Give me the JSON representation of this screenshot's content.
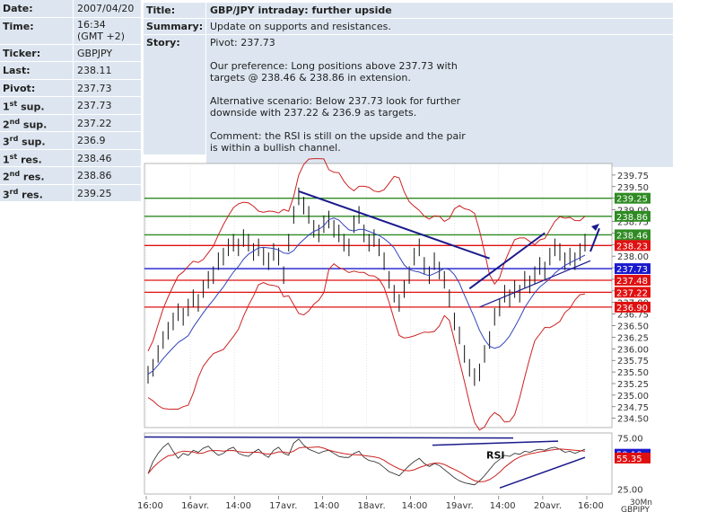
{
  "summary_table": [
    {
      "label": "Date:",
      "value": "2007/04/20"
    },
    {
      "label": "Time:",
      "value": "16:34\n(GMT +2)"
    },
    {
      "label": "Ticker:",
      "value": "GBPJPY"
    },
    {
      "label": "Last:",
      "value": "238.11"
    },
    {
      "label": "Pivot:",
      "value": "237.73"
    },
    {
      "label_pre": "1",
      "label_sup": "st",
      "label_post": " sup.",
      "value": "237.73"
    },
    {
      "label_pre": "2",
      "label_sup": "nd",
      "label_post": " sup.",
      "value": "237.22"
    },
    {
      "label_pre": "3",
      "label_sup": "rd",
      "label_post": " sup.",
      "value": "236.9"
    },
    {
      "label_pre": "1",
      "label_sup": "st",
      "label_post": " res.",
      "value": "238.46"
    },
    {
      "label_pre": "2",
      "label_sup": "nd",
      "label_post": " res.",
      "value": "238.86"
    },
    {
      "label_pre": "3",
      "label_sup": "rd",
      "label_post": " res.",
      "value": "239.25"
    }
  ],
  "info": {
    "title_label": "Title:",
    "title": "GBP/JPY intraday: further upside",
    "summary_label": "Summary:",
    "summary": "Update on supports and resistances.",
    "story_label": "Story:",
    "story": [
      "Pivot: 237.73",
      "Our preference: Long positions above 237.73 with\ntargets @ 238.46 & 238.86 in extension.",
      "Alternative scenario: Below 237.73 look for further\ndownside with 237.22 & 236.9 as targets.",
      "Comment: the RSI is still on the upside and the pair\nis within a bullish channel."
    ]
  },
  "chart_data": {
    "type": "line",
    "instrument": "GBPJPY",
    "timeframe": "30Mn",
    "x_ticks": [
      "16:00",
      "16avr.",
      "14:00",
      "17avr.",
      "14:00",
      "18avr.",
      "14:00",
      "19avr.",
      "14:00",
      "20avr.",
      "16:00"
    ],
    "price_axis": {
      "ylim": [
        234.3,
        240.0
      ],
      "ticks": [
        "239.75",
        "239.50",
        "239.25",
        "239.00",
        "238.75",
        "238.50",
        "238.25",
        "238.00",
        "237.75",
        "237.50",
        "237.25",
        "237.00",
        "236.75",
        "236.50",
        "236.25",
        "236.00",
        "235.75",
        "235.50",
        "235.25",
        "235.00",
        "234.75",
        "234.50"
      ]
    },
    "levels": [
      {
        "value": 239.25,
        "label": "239.25",
        "color": "#2e8b22"
      },
      {
        "value": 238.86,
        "label": "238.86",
        "color": "#2e8b22"
      },
      {
        "value": 238.46,
        "label": "238.46",
        "color": "#2e8b22"
      },
      {
        "value": 238.23,
        "label": "238.23",
        "color": "#e01010"
      },
      {
        "value": 237.73,
        "label": "237.73",
        "color": "#1a1acc"
      },
      {
        "value": 237.48,
        "label": "237.48",
        "color": "#e01010"
      },
      {
        "value": 237.22,
        "label": "237.22",
        "color": "#e01010"
      },
      {
        "value": 236.9,
        "label": "236.90",
        "color": "#e01010"
      }
    ],
    "close_series": [
      235.45,
      235.6,
      235.9,
      236.2,
      236.4,
      236.6,
      236.8,
      236.7,
      236.9,
      237.1,
      237.0,
      237.3,
      237.5,
      237.6,
      237.9,
      238.0,
      238.2,
      238.3,
      238.2,
      238.4,
      238.3,
      238.1,
      238.2,
      238.0,
      237.9,
      238.1,
      238.0,
      237.6,
      238.3,
      238.9,
      239.3,
      239.1,
      238.9,
      238.6,
      238.5,
      238.7,
      238.8,
      238.6,
      238.5,
      238.3,
      238.2,
      238.7,
      238.9,
      238.5,
      238.3,
      238.4,
      238.2,
      237.9,
      237.5,
      237.2,
      237.0,
      237.3,
      237.6,
      238.0,
      238.2,
      237.8,
      237.6,
      237.9,
      237.7,
      237.5,
      237.1,
      236.6,
      236.3,
      235.9,
      235.6,
      235.4,
      235.5,
      235.9,
      236.2,
      236.7,
      236.9,
      237.2,
      237.1,
      237.3,
      237.2,
      237.5,
      237.4,
      237.6,
      237.8,
      237.7,
      238.0,
      238.2,
      238.1,
      237.9,
      238.0,
      237.9,
      238.1,
      238.3
    ],
    "rsi_axis": {
      "ylim": [
        20,
        80
      ],
      "ticks": [
        "75.00",
        "25.00"
      ]
    },
    "rsi_series": [
      40,
      52,
      60,
      66,
      70,
      62,
      55,
      60,
      58,
      63,
      61,
      65,
      67,
      62,
      58,
      60,
      64,
      66,
      60,
      58,
      57,
      61,
      64,
      59,
      56,
      63,
      66,
      60,
      58,
      70,
      74,
      68,
      64,
      62,
      60,
      62,
      63,
      60,
      57,
      56,
      56,
      60,
      62,
      56,
      53,
      52,
      50,
      46,
      42,
      40,
      38,
      43,
      48,
      52,
      55,
      50,
      47,
      50,
      48,
      44,
      40,
      36,
      33,
      31,
      30,
      29,
      33,
      38,
      44,
      50,
      54,
      58,
      57,
      60,
      59,
      62,
      61,
      63,
      64,
      63,
      65,
      66,
      64,
      61,
      62,
      60,
      62,
      64
    ],
    "rsi_value_labels": [
      "59.10",
      "55.35"
    ],
    "annotations": [
      "RSI"
    ]
  }
}
